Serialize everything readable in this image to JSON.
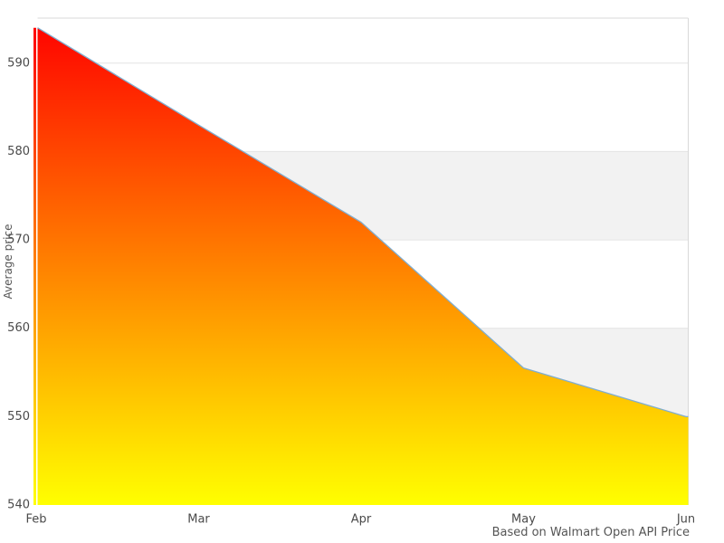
{
  "chart_data": {
    "type": "area",
    "title": "",
    "x": [
      "Feb",
      "Mar",
      "Apr",
      "May",
      "Jun"
    ],
    "series": [
      {
        "name": "Average price",
        "values": [
          594,
          583,
          572,
          555.5,
          550
        ]
      }
    ],
    "ylabel": "Average price",
    "caption": "Based on Walmart Open API Price",
    "ylim": [
      540,
      595.1
    ],
    "yticks": [
      540,
      550,
      560,
      570,
      580,
      590
    ],
    "grid": true,
    "legend": "none",
    "plot_bands": [
      [
        550,
        560
      ],
      [
        570,
        580
      ]
    ],
    "colors": {
      "gradient_top": "#ff0000",
      "gradient_bottom": "#ffff00",
      "line": "#80aed0",
      "band": "#f2f2f2",
      "gridline": "#e4e4e4",
      "border": "#d9d9d9",
      "tick_text": "#4a4a4a",
      "title_text": "#555555",
      "background": "#ffffff"
    }
  }
}
